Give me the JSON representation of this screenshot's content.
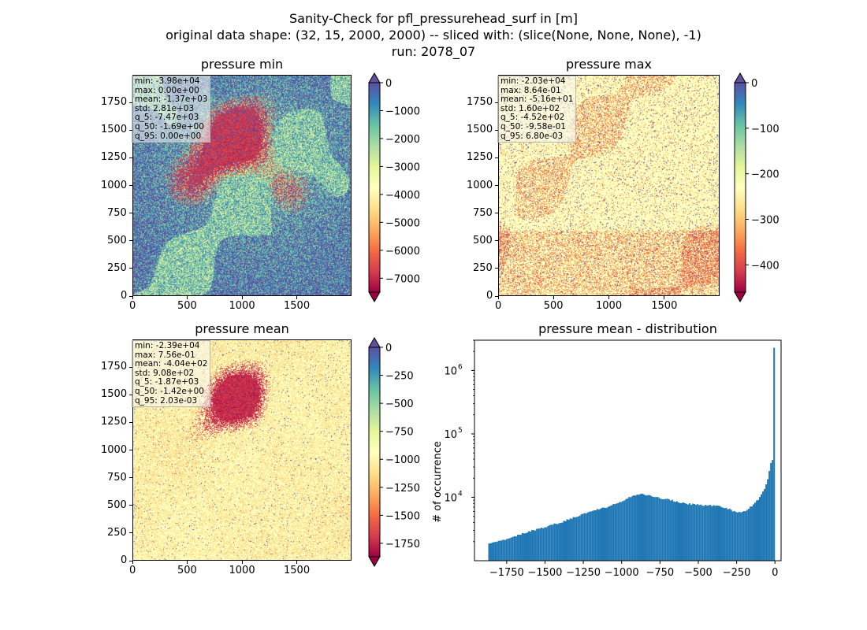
{
  "figure": {
    "title_line1": "Sanity-Check for pfl_pressurehead_surf in [m]",
    "title_line2": "original data shape: (32, 15, 2000, 2000) -- sliced with: (slice(None, None, None), -1)",
    "title_line3": "run: 2078_07"
  },
  "colormap": "Spectral",
  "chart_data": [
    {
      "type": "heatmap",
      "title": "pressure min",
      "xlim": [
        0,
        2000
      ],
      "ylim": [
        0,
        2000
      ],
      "xticks": [
        "0",
        "500",
        "1000",
        "1500"
      ],
      "yticks": [
        "0",
        "250",
        "500",
        "750",
        "1000",
        "1250",
        "1500",
        "1750"
      ],
      "colorbar": {
        "vmin": -7500,
        "vmax": 0,
        "extend": "both",
        "ticks": [
          "0",
          "−1000",
          "−2000",
          "−3000",
          "−4000",
          "−5000",
          "−6000",
          "−7000"
        ]
      },
      "stats": [
        "min: -3.98e+04",
        "max: 0.00e+00",
        "mean: -1.37e+03",
        "std: 2.81e+03",
        "q_5: -7.47e+03",
        "q_50: -1.69e+00",
        "q_95: 0.00e+00"
      ]
    },
    {
      "type": "heatmap",
      "title": "pressure max",
      "xlim": [
        0,
        2000
      ],
      "ylim": [
        0,
        2000
      ],
      "xticks": [
        "0",
        "500",
        "1000",
        "1500"
      ],
      "yticks": [
        "0",
        "250",
        "500",
        "750",
        "1000",
        "1250",
        "1500",
        "1750"
      ],
      "colorbar": {
        "vmin": -460,
        "vmax": 0,
        "extend": "both",
        "ticks": [
          "0",
          "−100",
          "−200",
          "−300",
          "−400"
        ]
      },
      "stats": [
        "min: -2.03e+04",
        "max: 8.64e-01",
        "mean: -5.16e+01",
        "std: 1.60e+02",
        "q_5: -4.52e+02",
        "q_50: -9.58e-01",
        "q_95: 6.80e-03"
      ]
    },
    {
      "type": "heatmap",
      "title": "pressure mean",
      "xlim": [
        0,
        2000
      ],
      "ylim": [
        0,
        2000
      ],
      "xticks": [
        "0",
        "500",
        "1000",
        "1500"
      ],
      "yticks": [
        "0",
        "250",
        "500",
        "750",
        "1000",
        "1250",
        "1500",
        "1750"
      ],
      "colorbar": {
        "vmin": -1870,
        "vmax": 0,
        "extend": "both",
        "ticks": [
          "0",
          "−250",
          "−500",
          "−750",
          "−1000",
          "−1250",
          "−1500",
          "−1750"
        ]
      },
      "stats": [
        "min: -2.39e+04",
        "max: 7.56e-01",
        "mean: -4.04e+02",
        "std: 9.08e+02",
        "q_5: -1.87e+03",
        "q_50: -1.42e+00",
        "q_95: 2.03e-03"
      ]
    },
    {
      "type": "bar",
      "title": "pressure mean - distribution",
      "ylabel": "# of occurrence",
      "yscale": "log",
      "xlim": [
        -1960,
        40
      ],
      "ylim": [
        1000,
        3000000
      ],
      "xticks": [
        "−1750",
        "−1500",
        "−1250",
        "−1000",
        "−750",
        "−500",
        "−250",
        "0"
      ],
      "yticks": [
        "10^4",
        "10^5",
        "10^6"
      ],
      "color": "#1f77b4",
      "bin_range": [
        -1870,
        0
      ],
      "curve": [
        [
          -1870,
          1800
        ],
        [
          -1750,
          2200
        ],
        [
          -1600,
          2900
        ],
        [
          -1500,
          3400
        ],
        [
          -1400,
          4000
        ],
        [
          -1300,
          4900
        ],
        [
          -1200,
          6000
        ],
        [
          -1100,
          7000
        ],
        [
          -1000,
          8500
        ],
        [
          -950,
          10000
        ],
        [
          -900,
          10800
        ],
        [
          -860,
          11200
        ],
        [
          -800,
          10300
        ],
        [
          -750,
          9700
        ],
        [
          -700,
          9400
        ],
        [
          -650,
          8600
        ],
        [
          -600,
          8200
        ],
        [
          -550,
          7800
        ],
        [
          -500,
          7700
        ],
        [
          -450,
          7500
        ],
        [
          -400,
          7300
        ],
        [
          -350,
          7100
        ],
        [
          -300,
          6500
        ],
        [
          -250,
          5800
        ],
        [
          -200,
          6000
        ],
        [
          -150,
          7300
        ],
        [
          -100,
          9700
        ],
        [
          -70,
          13000
        ],
        [
          -50,
          18000
        ],
        [
          -30,
          30000
        ],
        [
          -20,
          42000
        ],
        [
          -10,
          36000
        ],
        [
          -2,
          2300000
        ]
      ]
    }
  ]
}
